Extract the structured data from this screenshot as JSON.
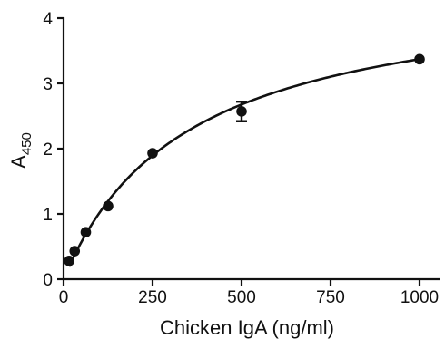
{
  "chart_data": {
    "type": "scatter",
    "title": "",
    "xlabel": "Chicken IgA (ng/ml)",
    "ylabel_main": "A",
    "ylabel_sub": "450",
    "xlim": [
      0,
      1000
    ],
    "ylim": [
      0,
      4
    ],
    "xticks": [
      0,
      250,
      500,
      750,
      1000
    ],
    "yticks": [
      0,
      1,
      2,
      3,
      4
    ],
    "grid": false,
    "legend": "none",
    "series": [
      {
        "points": [
          {
            "x": 15.6,
            "y": 0.28,
            "err": 0.02
          },
          {
            "x": 31.25,
            "y": 0.43,
            "err": 0.02
          },
          {
            "x": 62.5,
            "y": 0.72,
            "err": 0.02
          },
          {
            "x": 125,
            "y": 1.12,
            "err": 0.03
          },
          {
            "x": 250,
            "y": 1.93,
            "err": 0.03
          },
          {
            "x": 500,
            "y": 2.57,
            "err": 0.15
          },
          {
            "x": 1000,
            "y": 3.37,
            "err": 0.03
          }
        ],
        "fit": {
          "model": "one-site binding",
          "bmax": 4.55,
          "kd": 350
        }
      }
    ],
    "colors": {
      "ink": "#111111",
      "background": "#ffffff"
    }
  }
}
